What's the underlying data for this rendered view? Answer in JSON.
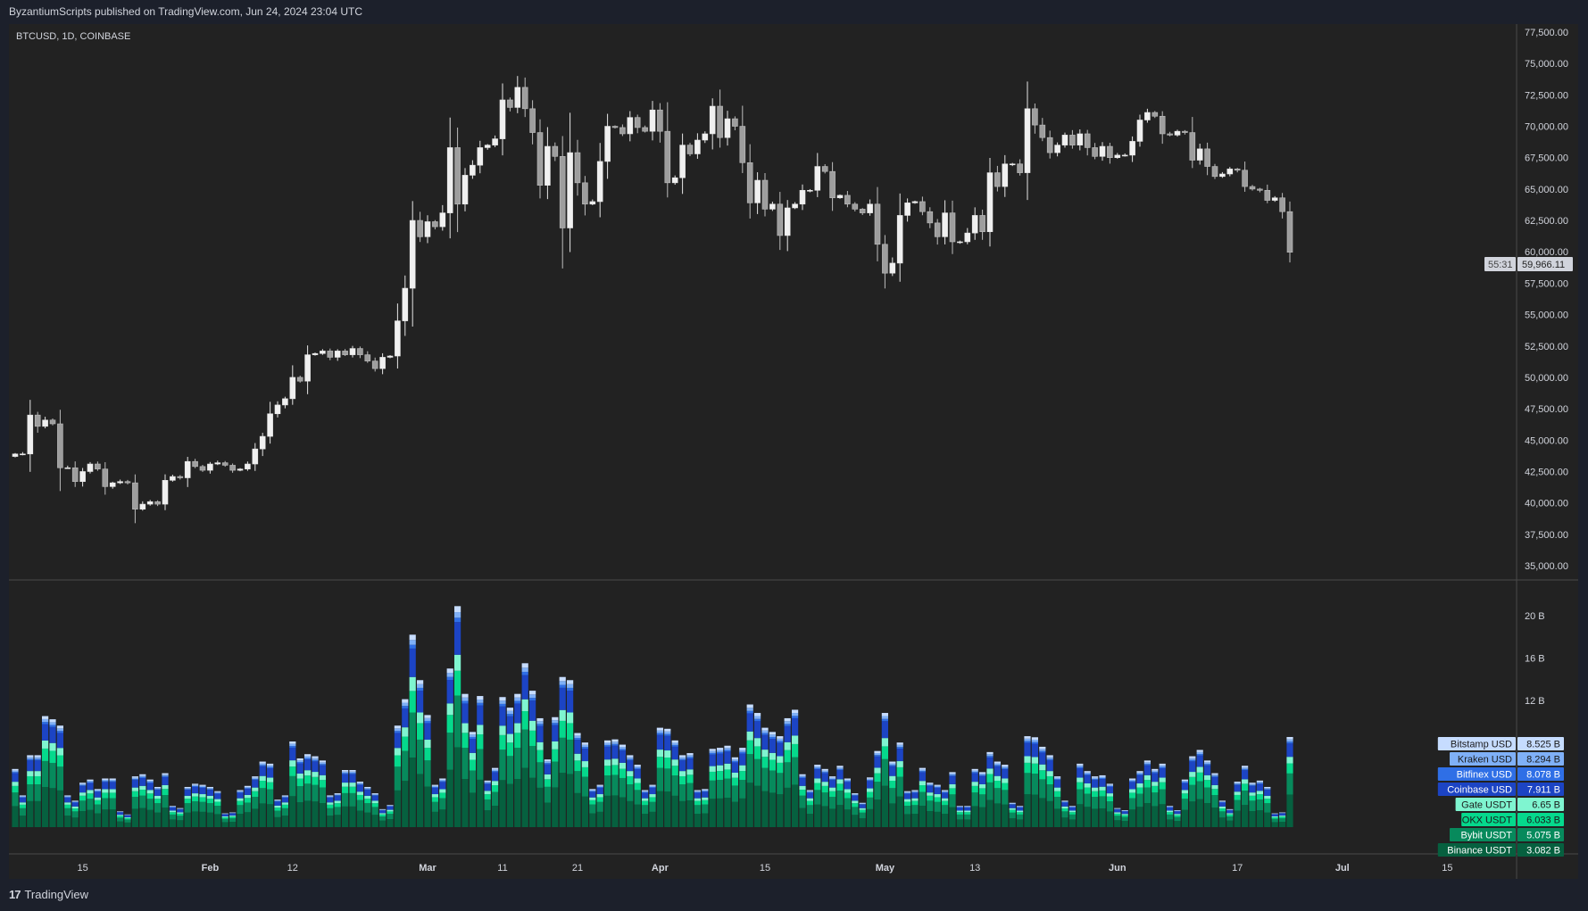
{
  "header": {
    "published": "ByzantiumScripts published on TradingView.com, Jun 24, 2024 23:04 UTC"
  },
  "symbol_line": "BTCUSD, 1D, COINBASE",
  "footer": {
    "brand": "TradingView",
    "logo_icon": "tradingview-logo-icon"
  },
  "price_tag": {
    "price": "59,966.11",
    "countdown": "55:31"
  },
  "chart_data": [
    {
      "type": "candlestick",
      "title": "BTCUSD, 1D, COINBASE",
      "x_start": "2024-01-06",
      "x_end": "2024-06-24",
      "ylim": [
        35000,
        77500
      ],
      "y_tick_labels": [
        "35,000.00",
        "37,500.00",
        "40,000.00",
        "42,500.00",
        "45,000.00",
        "47,500.00",
        "50,000.00",
        "52,500.00",
        "55,000.00",
        "57,500.00",
        "60,000.00",
        "62,500.00",
        "65,000.00",
        "67,500.00",
        "70,000.00",
        "72,500.00",
        "75,000.00",
        "77,500.00"
      ],
      "x_tick_labels": [
        {
          "label": "15",
          "date": "2024-01-15"
        },
        {
          "label": "Feb",
          "date": "2024-02-01"
        },
        {
          "label": "12",
          "date": "2024-02-12"
        },
        {
          "label": "Mar",
          "date": "2024-03-01"
        },
        {
          "label": "11",
          "date": "2024-03-11"
        },
        {
          "label": "21",
          "date": "2024-03-21"
        },
        {
          "label": "Apr",
          "date": "2024-04-01"
        },
        {
          "label": "15",
          "date": "2024-04-15"
        },
        {
          "label": "May",
          "date": "2024-05-01"
        },
        {
          "label": "13",
          "date": "2024-05-13"
        },
        {
          "label": "Jun",
          "date": "2024-06-01"
        },
        {
          "label": "17",
          "date": "2024-06-17"
        },
        {
          "label": "Jul",
          "date": "2024-07-01"
        },
        {
          "label": "15",
          "date": "2024-07-15"
        }
      ],
      "close": [
        43900,
        43900,
        47000,
        46100,
        46600,
        46300,
        42800,
        42800,
        41700,
        42500,
        43100,
        42700,
        41300,
        41600,
        41700,
        41600,
        39500,
        39900,
        40100,
        39900,
        41800,
        42100,
        42000,
        43300,
        42900,
        42600,
        43100,
        43200,
        43000,
        42600,
        42700,
        43100,
        44300,
        45300,
        47100,
        47800,
        48300,
        50000,
        49700,
        51800,
        51900,
        52100,
        51600,
        52100,
        51800,
        52300,
        51800,
        51300,
        50700,
        51600,
        51700,
        54500,
        57100,
        62500,
        61200,
        62400,
        62000,
        63100,
        68300,
        63800,
        66100,
        66900,
        68300,
        68500,
        69000,
        72100,
        71500,
        73100,
        71400,
        69500,
        65300,
        68400,
        67600,
        61900,
        67900,
        65500,
        63800,
        64000,
        67200,
        70000,
        69900,
        69400,
        70700,
        69900,
        69600,
        71300,
        69600,
        65500,
        65900,
        68500,
        67800,
        68900,
        69400,
        71600,
        69100,
        70600,
        70000,
        67100,
        63900,
        65700,
        63400,
        63800,
        61300,
        63500,
        63800,
        64900,
        64900,
        66800,
        66400,
        64300,
        64500,
        63800,
        63400,
        63100,
        63800,
        60600,
        58300,
        59100,
        62900,
        63900,
        64000,
        63200,
        62300,
        61200,
        63100,
        60800,
        60800,
        61500,
        62900,
        61600,
        66300,
        65200,
        67000,
        67000,
        66300,
        71400,
        70100,
        69100,
        67900,
        68500,
        69300,
        68500,
        69400,
        68300,
        67600,
        68400,
        67500,
        67700,
        67700,
        68800,
        70500,
        71100,
        70800,
        69400,
        69300,
        69600,
        69500,
        67300,
        68200,
        66800,
        66000,
        66200,
        66600,
        66500,
        65200,
        65000,
        64900,
        64100,
        64300,
        63200,
        59966.11
      ]
    },
    {
      "type": "stacked-bar",
      "ylim": [
        0,
        22
      ],
      "y_tick_labels": [
        "12 B",
        "16 B",
        "20 B"
      ],
      "total_volume_B": [
        5.5,
        3.0,
        6.8,
        6.8,
        10.5,
        10.2,
        9.6,
        3.0,
        2.5,
        4.2,
        4.5,
        3.6,
        4.6,
        4.6,
        1.5,
        1.2,
        4.8,
        5.0,
        4.5,
        3.8,
        5.1,
        2.0,
        1.8,
        3.8,
        4.1,
        4.0,
        3.8,
        3.4,
        1.3,
        1.4,
        3.5,
        3.9,
        4.8,
        6.2,
        6.0,
        2.6,
        3.0,
        8.1,
        6.5,
        6.9,
        6.7,
        6.3,
        3.0,
        3.2,
        5.4,
        5.4,
        4.3,
        3.8,
        3.2,
        1.7,
        2.1,
        9.6,
        12.1,
        18.2,
        13.9,
        10.6,
        4.0,
        4.6,
        15.0,
        20.9,
        12.6,
        9.0,
        12.4,
        4.4,
        5.6,
        12.3,
        11.3,
        12.6,
        15.5,
        12.9,
        10.3,
        6.4,
        10.4,
        14.2,
        13.9,
        8.9,
        8.0,
        3.6,
        4.0,
        8.2,
        8.3,
        7.8,
        6.8,
        5.9,
        3.5,
        4.0,
        9.4,
        9.3,
        8.2,
        6.8,
        7.0,
        3.5,
        3.6,
        7.4,
        7.5,
        7.7,
        6.6,
        7.5,
        11.6,
        10.8,
        9.4,
        9.0,
        8.6,
        10.3,
        11.1,
        5.0,
        3.5,
        5.9,
        5.5,
        4.8,
        5.8,
        4.6,
        3.2,
        2.3,
        4.7,
        7.2,
        10.8,
        6.2,
        8.0,
        3.4,
        3.5,
        5.6,
        4.2,
        4.0,
        3.5,
        5.2,
        2.0,
        2.0,
        5.5,
        5.2,
        7.1,
        6.2,
        5.9,
        2.3,
        2.0,
        8.6,
        8.5,
        7.6,
        6.8,
        4.8,
        2.5,
        2.0,
        6.0,
        5.3,
        4.8,
        4.9,
        4.1,
        1.8,
        1.6,
        4.6,
        5.3,
        6.3,
        5.5,
        6.0,
        2.0,
        1.6,
        4.5,
        6.7,
        7.3,
        6.3,
        5.1,
        2.5,
        1.7,
        4.3,
        5.8,
        4.2,
        4.4,
        3.8,
        1.3,
        1.4,
        8.525
      ],
      "series": [
        {
          "name": "Bitstamp USD",
          "last": "8.525 B",
          "last_value": 8.525,
          "color": "#c6dcff",
          "text": "#1a1a1a"
        },
        {
          "name": "Kraken USD",
          "last": "8.294 B",
          "last_value": 8.294,
          "color": "#7fb0f7",
          "text": "#1a1a1a"
        },
        {
          "name": "Bitfinex USD",
          "last": "8.078 B",
          "last_value": 8.078,
          "color": "#2f6fe6",
          "text": "#ffffff"
        },
        {
          "name": "Coinbase USD",
          "last": "7.911 B",
          "last_value": 7.911,
          "color": "#1c44c4",
          "text": "#ffffff"
        },
        {
          "name": "Gate USDT",
          "last": "6.65 B",
          "last_value": 6.65,
          "color": "#7ff5d0",
          "text": "#1a1a1a"
        },
        {
          "name": "OKX USDT",
          "last": "6.033 B",
          "last_value": 6.033,
          "color": "#05d98c",
          "text": "#1a1a1a"
        },
        {
          "name": "Bybit USDT",
          "last": "5.075 B",
          "last_value": 5.075,
          "color": "#078a5c",
          "text": "#ffffff"
        },
        {
          "name": "Binance USDT",
          "last": "3.082 B",
          "last_value": 3.082,
          "color": "#06603f",
          "text": "#ffffff"
        }
      ]
    }
  ]
}
